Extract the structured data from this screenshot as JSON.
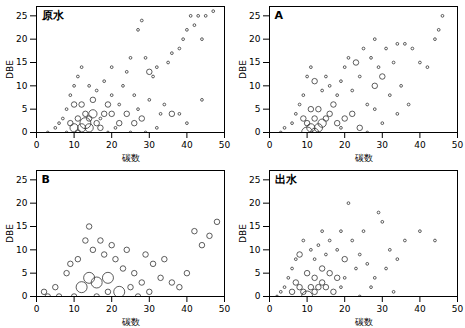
{
  "chart_data": [
    {
      "type": "scatter",
      "title": "原水",
      "x_label": "碳数",
      "y_label": "DBE",
      "xlim": [
        0,
        50
      ],
      "ylim": [
        0,
        27
      ],
      "xticks": [
        0,
        10,
        20,
        30,
        40,
        50
      ],
      "yticks": [
        0,
        5,
        10,
        15,
        20,
        25
      ],
      "marker": "circle",
      "color": "#333333",
      "x": [
        10,
        12,
        13,
        14,
        11,
        15,
        13,
        12,
        10,
        16,
        9,
        17,
        14,
        11,
        18,
        20,
        24,
        26,
        28,
        22,
        19,
        15,
        36,
        30,
        3,
        5,
        6,
        7,
        8,
        8,
        9,
        10,
        11,
        12,
        14,
        16,
        18,
        20,
        20,
        22,
        23,
        24,
        25,
        26,
        27,
        28,
        29,
        30,
        31,
        32,
        33,
        34,
        35,
        36,
        38,
        39,
        40,
        41,
        42,
        43,
        44,
        45,
        47,
        32,
        29,
        25,
        21,
        38,
        40,
        44,
        27,
        17,
        19
      ],
      "y": [
        1,
        1,
        2,
        1,
        0,
        4,
        4,
        6,
        6,
        2,
        2,
        1,
        3,
        3,
        4,
        4,
        4,
        2,
        3,
        2,
        6,
        7,
        4,
        13,
        0,
        1,
        2,
        3,
        0,
        5,
        8,
        10,
        12,
        14,
        10,
        9,
        11,
        14,
        8,
        6,
        10,
        13,
        16,
        8,
        22,
        24,
        16,
        7,
        12,
        14,
        4,
        6,
        15,
        17,
        18,
        20,
        22,
        25,
        23,
        25,
        20,
        25,
        26,
        1,
        0,
        0,
        1,
        4,
        2,
        7,
        5,
        3,
        0
      ],
      "sizes": [
        3,
        3,
        4,
        3,
        2,
        3,
        2,
        2,
        2,
        2,
        2,
        2,
        2,
        2,
        2,
        2,
        2,
        2,
        2,
        2,
        2,
        2,
        2,
        2,
        1,
        1,
        1,
        1,
        1,
        1,
        1,
        1,
        1,
        1,
        1,
        1,
        1,
        1,
        1,
        1,
        1,
        1,
        1,
        1,
        1,
        1,
        1,
        1,
        1,
        1,
        1,
        1,
        1,
        1,
        1,
        1,
        1,
        1,
        1,
        1,
        1,
        1,
        1,
        1,
        1,
        1,
        1,
        1,
        1,
        1,
        1,
        1,
        1
      ]
    },
    {
      "type": "scatter",
      "title": "A",
      "x_label": "碳数",
      "y_label": "DBE",
      "xlim": [
        0,
        50
      ],
      "ylim": [
        0,
        27
      ],
      "xticks": [
        0,
        10,
        20,
        30,
        40,
        50
      ],
      "yticks": [
        0,
        5,
        10,
        15,
        20,
        25
      ],
      "marker": "circle",
      "color": "#333333",
      "x": [
        10,
        11,
        12,
        13,
        14,
        12,
        10,
        9,
        15,
        16,
        13,
        11,
        18,
        20,
        22,
        24,
        17,
        23,
        28,
        30,
        12,
        3,
        4,
        6,
        7,
        8,
        9,
        10,
        11,
        14,
        15,
        16,
        18,
        19,
        20,
        21,
        22,
        24,
        25,
        26,
        27,
        28,
        29,
        31,
        32,
        33,
        34,
        35,
        36,
        38,
        40,
        42,
        44,
        45,
        46,
        30,
        34,
        26,
        19,
        28,
        37
      ],
      "y": [
        0,
        1,
        0,
        1,
        2,
        3,
        2,
        3,
        3,
        4,
        5,
        5,
        2,
        3,
        4,
        1,
        6,
        15,
        10,
        12,
        11,
        0,
        1,
        2,
        4,
        6,
        8,
        12,
        14,
        9,
        12,
        10,
        8,
        11,
        14,
        16,
        9,
        12,
        18,
        6,
        16,
        20,
        14,
        18,
        8,
        15,
        19,
        10,
        19,
        18,
        15,
        14,
        20,
        22,
        25,
        2,
        4,
        0,
        1,
        5,
        6
      ],
      "sizes": [
        4,
        3,
        3,
        3,
        3,
        2,
        2,
        2,
        2,
        2,
        2,
        2,
        2,
        2,
        2,
        2,
        2,
        2,
        2,
        2,
        2,
        1,
        1,
        1,
        1,
        1,
        1,
        1,
        1,
        1,
        1,
        1,
        1,
        1,
        1,
        1,
        1,
        1,
        1,
        1,
        1,
        1,
        1,
        1,
        1,
        1,
        1,
        1,
        1,
        1,
        1,
        1,
        1,
        1,
        1,
        1,
        1,
        1,
        1,
        1,
        1
      ]
    },
    {
      "type": "scatter",
      "title": "B",
      "x_label": "碳数",
      "y_label": "DBE",
      "xlim": [
        0,
        50
      ],
      "ylim": [
        0,
        27
      ],
      "xticks": [
        0,
        10,
        20,
        30,
        40,
        50
      ],
      "yticks": [
        0,
        5,
        10,
        15,
        20,
        25
      ],
      "marker": "circle",
      "color": "#333333",
      "x": [
        14,
        16,
        19,
        12,
        22,
        10,
        2,
        3,
        5,
        6,
        8,
        9,
        11,
        13,
        14,
        15,
        17,
        18,
        20,
        21,
        23,
        24,
        25,
        26,
        28,
        29,
        30,
        31,
        33,
        34,
        36,
        38,
        40,
        42,
        44,
        46,
        48,
        27,
        16,
        19
      ],
      "y": [
        4,
        3,
        4,
        2,
        1,
        0,
        1,
        0,
        2,
        0,
        5,
        7,
        8,
        12,
        15,
        10,
        12,
        9,
        11,
        8,
        6,
        10,
        2,
        5,
        3,
        9,
        1,
        7,
        4,
        8,
        3,
        2,
        5,
        14,
        11,
        13,
        16,
        0,
        0,
        1
      ],
      "sizes": [
        2,
        2,
        2,
        2,
        2,
        1,
        1,
        1,
        1,
        1,
        1,
        1,
        1,
        1,
        1,
        1,
        1,
        1,
        1,
        1,
        1,
        1,
        1,
        1,
        1,
        1,
        1,
        1,
        1,
        1,
        1,
        1,
        1,
        1,
        1,
        1,
        1,
        1,
        1,
        1
      ]
    },
    {
      "type": "scatter",
      "title": "出水",
      "x_label": "碳数",
      "y_label": "DBE",
      "xlim": [
        0,
        50
      ],
      "ylim": [
        0,
        27
      ],
      "xticks": [
        0,
        10,
        20,
        30,
        40,
        50
      ],
      "yticks": [
        0,
        5,
        10,
        15,
        20,
        25
      ],
      "marker": "circle",
      "color": "#333333",
      "x": [
        10,
        7,
        8,
        9,
        11,
        12,
        13,
        14,
        15,
        12,
        10,
        8,
        16,
        18,
        14,
        20,
        17,
        6,
        2,
        3,
        4,
        5,
        6,
        7,
        9,
        11,
        12,
        13,
        14,
        15,
        16,
        18,
        19,
        20,
        21,
        22,
        23,
        24,
        25,
        26,
        27,
        28,
        29,
        30,
        31,
        32,
        34,
        36,
        40,
        44,
        33,
        24,
        19
      ],
      "y": [
        0,
        3,
        2,
        1,
        2,
        1,
        2,
        3,
        2,
        4,
        5,
        9,
        5,
        4,
        6,
        8,
        1,
        1,
        0,
        1,
        2,
        4,
        6,
        8,
        12,
        10,
        8,
        11,
        14,
        9,
        12,
        10,
        14,
        4,
        20,
        12,
        6,
        9,
        14,
        7,
        2,
        4,
        18,
        16,
        6,
        10,
        8,
        12,
        14,
        12,
        1,
        0,
        2
      ],
      "sizes": [
        4,
        2,
        2,
        2,
        2,
        2,
        2,
        2,
        2,
        2,
        2,
        2,
        2,
        2,
        2,
        2,
        2,
        2,
        1,
        1,
        1,
        1,
        1,
        1,
        1,
        1,
        1,
        1,
        1,
        1,
        1,
        1,
        1,
        1,
        1,
        1,
        1,
        1,
        1,
        1,
        1,
        1,
        1,
        1,
        1,
        1,
        1,
        1,
        1,
        1,
        1,
        1,
        1
      ]
    }
  ]
}
